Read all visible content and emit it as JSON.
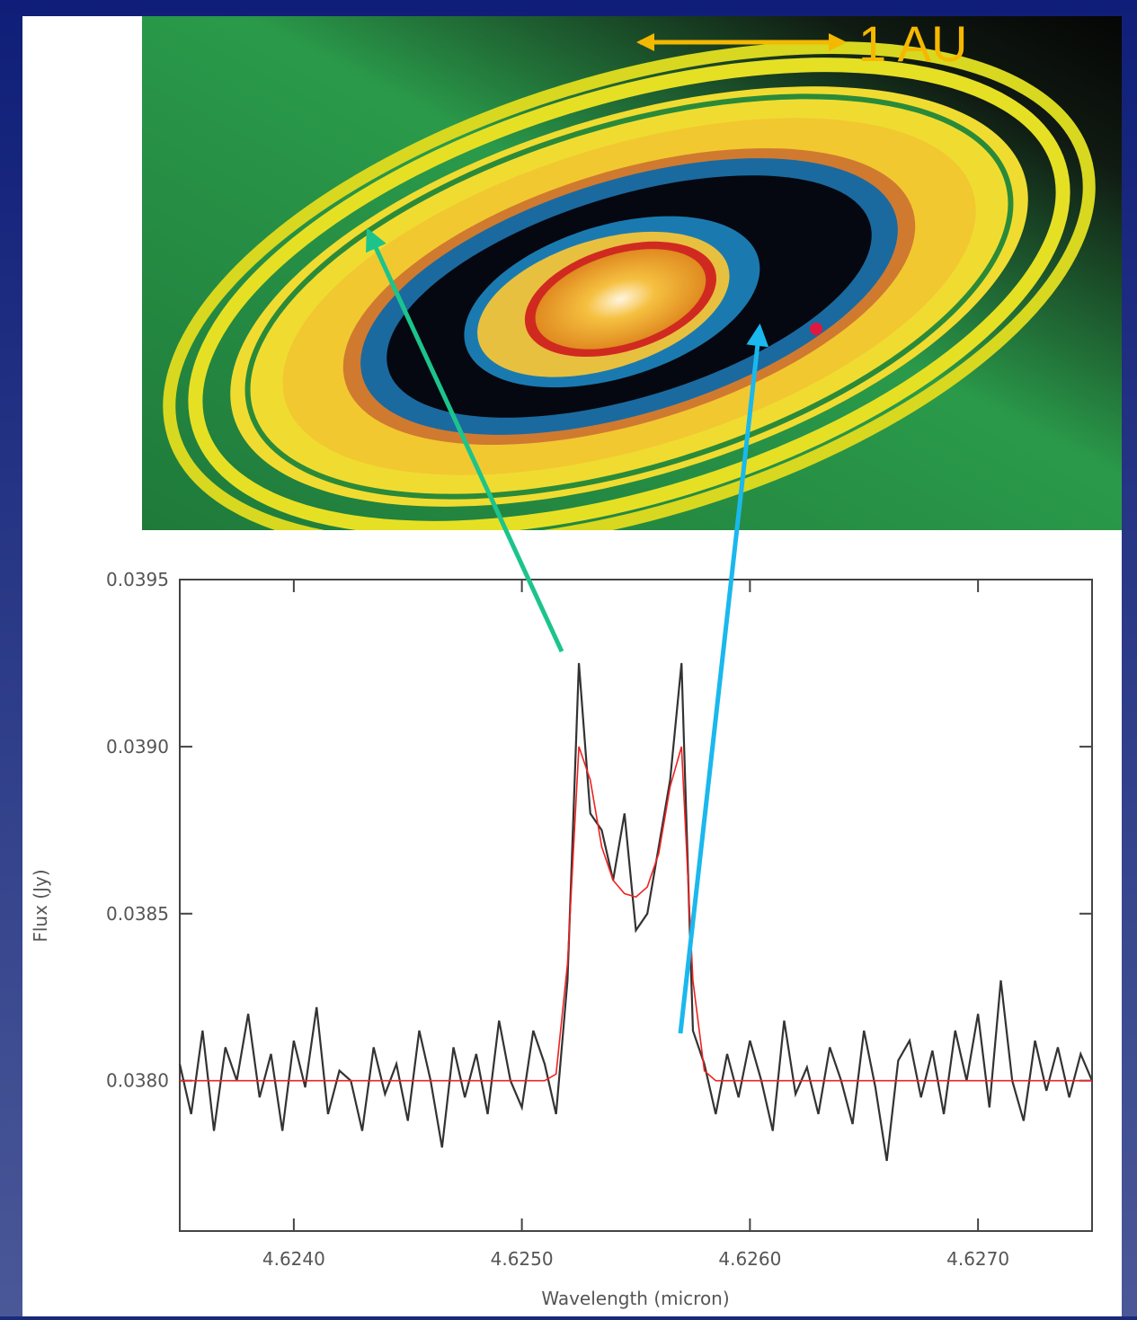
{
  "annotation": "1 AU",
  "chart_data": {
    "type": "line",
    "xlabel": "Wavelength (micron)",
    "ylabel": "Flux (Jy)",
    "xlim": [
      4.6235,
      4.6275
    ],
    "ylim": [
      0.03755,
      0.0395
    ],
    "xticks": [
      {
        "value": 4.624,
        "label": "4.6240"
      },
      {
        "value": 4.625,
        "label": "4.6250"
      },
      {
        "value": 4.626,
        "label": "4.6260"
      },
      {
        "value": 4.627,
        "label": "4.6270"
      }
    ],
    "yticks": [
      {
        "value": 0.038,
        "label": "0.0380"
      },
      0.0385,
      {
        "value": 0.039,
        "label": "0.0390"
      },
      0.0395
    ],
    "x": [
      4.6235,
      4.62355,
      4.6236,
      4.62365,
      4.6237,
      4.62375,
      4.6238,
      4.62385,
      4.6239,
      4.62395,
      4.624,
      4.62405,
      4.6241,
      4.62415,
      4.6242,
      4.62425,
      4.6243,
      4.62435,
      4.6244,
      4.62445,
      4.6245,
      4.62455,
      4.6246,
      4.62465,
      4.6247,
      4.62475,
      4.6248,
      4.62485,
      4.6249,
      4.62495,
      4.625,
      4.62505,
      4.6251,
      4.62515,
      4.6252,
      4.62525,
      4.6253,
      4.62535,
      4.6254,
      4.62545,
      4.6255,
      4.62555,
      4.6256,
      4.62565,
      4.6257,
      4.62575,
      4.6258,
      4.62585,
      4.6259,
      4.62595,
      4.626,
      4.62605,
      4.6261,
      4.62615,
      4.6262,
      4.62625,
      4.6263,
      4.62635,
      4.6264,
      4.62645,
      4.6265,
      4.62655,
      4.6266,
      4.62665,
      4.6267,
      4.62675,
      4.6268,
      4.62685,
      4.6269,
      4.62695,
      4.627,
      4.62705,
      4.6271,
      4.62715,
      4.6272,
      4.62725,
      4.6273,
      4.62735,
      4.6274,
      4.62745,
      4.6275
    ],
    "series": [
      {
        "color": "#333333",
        "values": [
          0.03805,
          0.0379,
          0.03815,
          0.03785,
          0.0381,
          0.038,
          0.0382,
          0.03795,
          0.03808,
          0.03785,
          0.03812,
          0.03798,
          0.03822,
          0.0379,
          0.03803,
          0.038,
          0.03785,
          0.0381,
          0.03796,
          0.03805,
          0.03788,
          0.03815,
          0.038,
          0.0378,
          0.0381,
          0.03795,
          0.03808,
          0.0379,
          0.03818,
          0.038,
          0.03792,
          0.03815,
          0.03805,
          0.0379,
          0.0383,
          0.03925,
          0.0388,
          0.03875,
          0.0386,
          0.0388,
          0.03845,
          0.0385,
          0.0387,
          0.0389,
          0.03925,
          0.03815,
          0.03805,
          0.0379,
          0.03808,
          0.03795,
          0.03812,
          0.038,
          0.03785,
          0.03818,
          0.03796,
          0.03804,
          0.0379,
          0.0381,
          0.038,
          0.03787,
          0.03815,
          0.03798,
          0.03776,
          0.03806,
          0.03812,
          0.03795,
          0.03809,
          0.0379,
          0.03815,
          0.038,
          0.0382,
          0.03792,
          0.0383,
          0.038,
          0.03788,
          0.03812,
          0.03797,
          0.0381,
          0.03795,
          0.03808,
          0.038
        ]
      },
      {
        "color": "#ee2222",
        "values": [
          0.038,
          0.038,
          0.038,
          0.038,
          0.038,
          0.038,
          0.038,
          0.038,
          0.038,
          0.038,
          0.038,
          0.038,
          0.038,
          0.038,
          0.038,
          0.038,
          0.038,
          0.038,
          0.038,
          0.038,
          0.038,
          0.038,
          0.038,
          0.038,
          0.038,
          0.038,
          0.038,
          0.038,
          0.038,
          0.038,
          0.038,
          0.038,
          0.038,
          0.03802,
          0.03835,
          0.039,
          0.0389,
          0.0387,
          0.0386,
          0.03856,
          0.03855,
          0.03858,
          0.03868,
          0.03888,
          0.039,
          0.0383,
          0.03803,
          0.038,
          0.038,
          0.038,
          0.038,
          0.038,
          0.038,
          0.038,
          0.038,
          0.038,
          0.038,
          0.038,
          0.038,
          0.038,
          0.038,
          0.038,
          0.038,
          0.038,
          0.038,
          0.038,
          0.038,
          0.038,
          0.038,
          0.038,
          0.038,
          0.038,
          0.038,
          0.038,
          0.038,
          0.038,
          0.038,
          0.038,
          0.038,
          0.038,
          0.038
        ]
      }
    ]
  }
}
